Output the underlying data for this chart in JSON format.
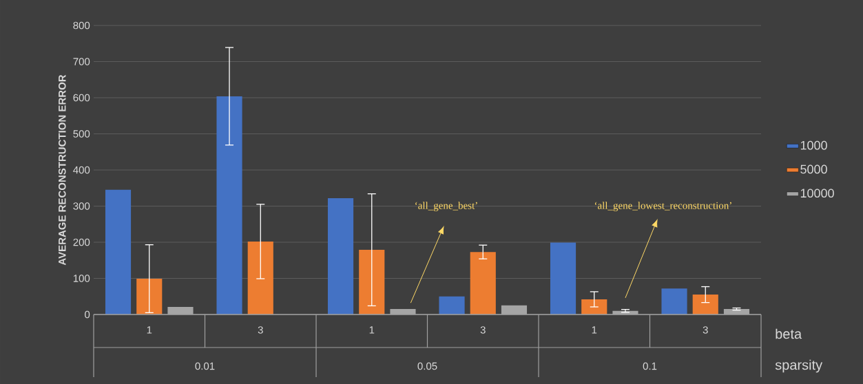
{
  "chart_data": {
    "type": "bar",
    "ylabel": "AVERAGE RECONSTRUCTION ERROR",
    "categories": [
      "1",
      "3",
      "1",
      "3",
      "1",
      "3"
    ],
    "series": [
      {
        "name": "1000",
        "color": "#4472c4",
        "values": [
          345,
          604,
          322,
          50,
          199,
          72
        ],
        "errors": [
          null,
          135,
          null,
          null,
          null,
          null
        ]
      },
      {
        "name": "5000",
        "color": "#ed7d31",
        "values": [
          99,
          202,
          179,
          173,
          42,
          55
        ],
        "errors": [
          94,
          103,
          155,
          19,
          21,
          22
        ]
      },
      {
        "name": "10000",
        "color": "#a5a5a5",
        "values": [
          21,
          null,
          15,
          25,
          10,
          15
        ],
        "errors": [
          null,
          null,
          null,
          null,
          4,
          3
        ]
      }
    ],
    "ylim": [
      0,
      800
    ],
    "yticks": [
      0,
      100,
      200,
      300,
      400,
      500,
      600,
      700,
      800
    ],
    "grid": "y",
    "legend": "right",
    "annotations": [
      "0.01",
      "0.05",
      "0.1",
      "beta",
      "sparsity",
      "‘all_gene_best’",
      "‘all_gene_lowest_reconstruction’"
    ]
  }
}
